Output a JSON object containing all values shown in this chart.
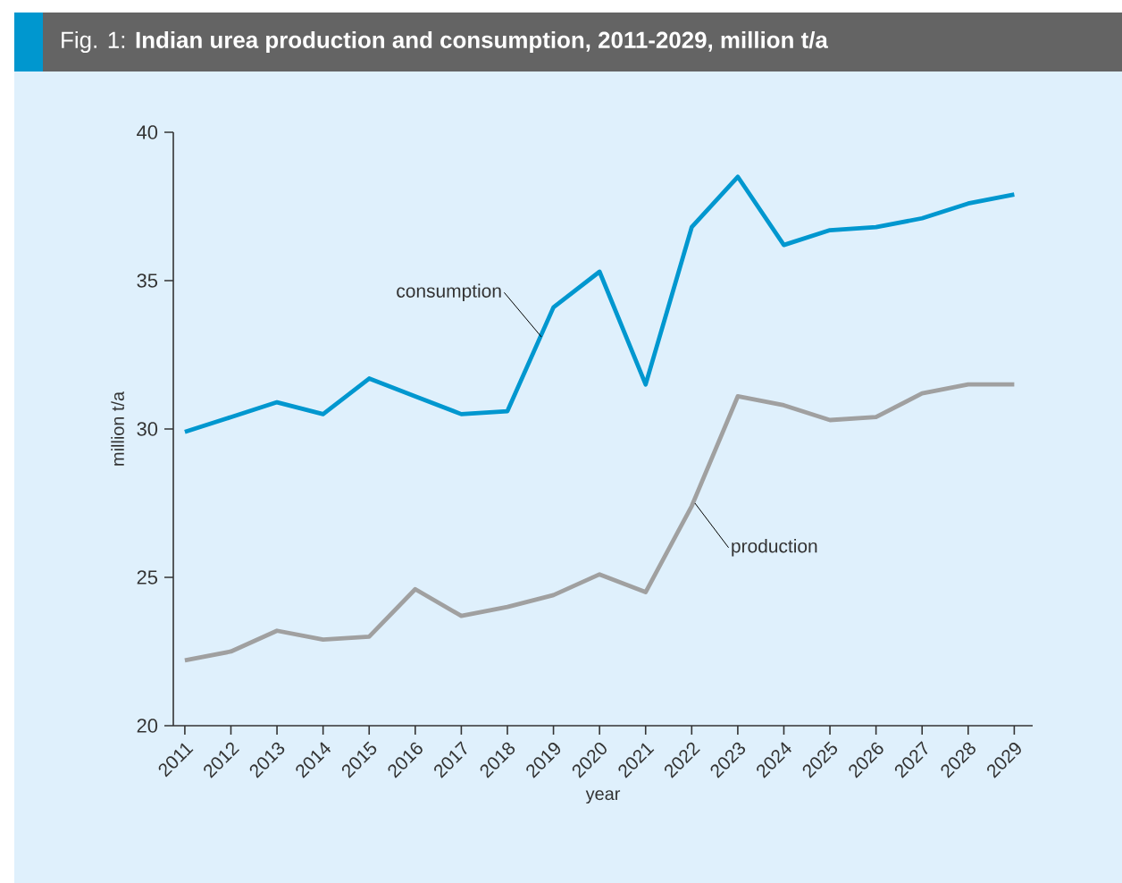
{
  "chart_data": {
    "type": "line",
    "title": "Fig. 1: **Indian urea production and consumption, 2011-2029, million t/a**",
    "xlabel": "year",
    "ylabel": "million t/a",
    "categories": [
      "2011",
      "2012",
      "2013",
      "2014",
      "2015",
      "2016",
      "2017",
      "2018",
      "2019",
      "2020",
      "2021",
      "2022",
      "2023",
      "2024",
      "2025",
      "2026",
      "2027",
      "2028",
      "2029"
    ],
    "series": [
      {
        "name": "consumption",
        "color": "#0097cf",
        "values": [
          29.9,
          30.4,
          30.9,
          30.5,
          31.7,
          31.1,
          30.5,
          30.6,
          34.1,
          35.3,
          31.5,
          36.8,
          38.5,
          36.2,
          36.7,
          36.8,
          37.1,
          37.6,
          37.9
        ]
      },
      {
        "name": "production",
        "color": "#a0a0a0",
        "values": [
          22.2,
          22.5,
          23.2,
          22.9,
          23.0,
          24.6,
          23.7,
          24.0,
          24.4,
          25.1,
          24.5,
          27.4,
          31.1,
          30.8,
          30.3,
          30.4,
          31.2,
          31.5,
          31.5
        ]
      }
    ],
    "ylim": [
      20,
      40
    ],
    "yticks": [
      20,
      25,
      30,
      35,
      40
    ]
  }
}
